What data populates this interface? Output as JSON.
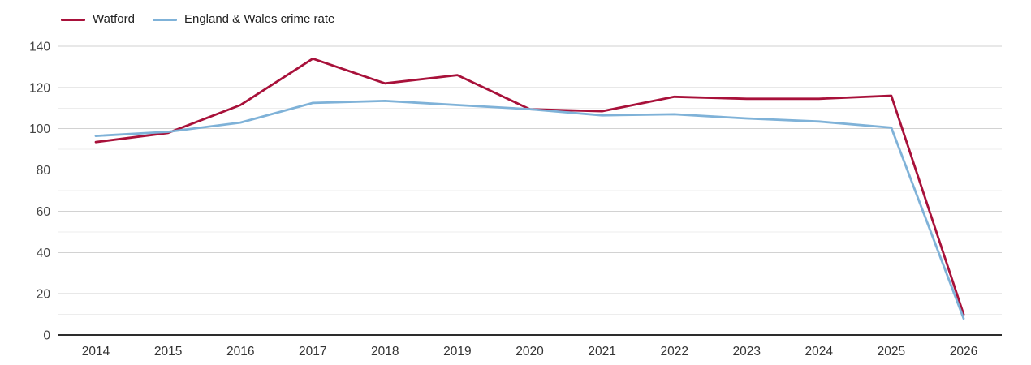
{
  "chart_data": {
    "type": "line",
    "x": [
      2014,
      2015,
      2016,
      2017,
      2018,
      2019,
      2020,
      2021,
      2022,
      2023,
      2024,
      2025,
      2026
    ],
    "series": [
      {
        "name": "Watford",
        "color": "#a8113a",
        "values": [
          93.5,
          98,
          111.5,
          134,
          122,
          126,
          109.5,
          108.5,
          115.5,
          114.5,
          114.5,
          116,
          10
        ]
      },
      {
        "name": "England & Wales crime rate",
        "color": "#7fb2d8",
        "values": [
          96.5,
          98.5,
          103,
          112.5,
          113.5,
          111.5,
          109.5,
          106.5,
          107,
          105,
          103.5,
          100.5,
          8
        ]
      }
    ],
    "title": "",
    "xlabel": "",
    "ylabel": "",
    "ylim": [
      0,
      140
    ],
    "yticks": [
      0,
      20,
      40,
      60,
      80,
      100,
      120,
      140
    ],
    "minor_grid_step": 10,
    "grid": true,
    "legend_position": "top-left"
  },
  "style": {
    "major_grid_color": "#d2d2d2",
    "minor_grid_color": "#ededed",
    "axis_color": "#2d2d2d",
    "y_label_color": "#444444",
    "x_label_color": "#333333"
  }
}
